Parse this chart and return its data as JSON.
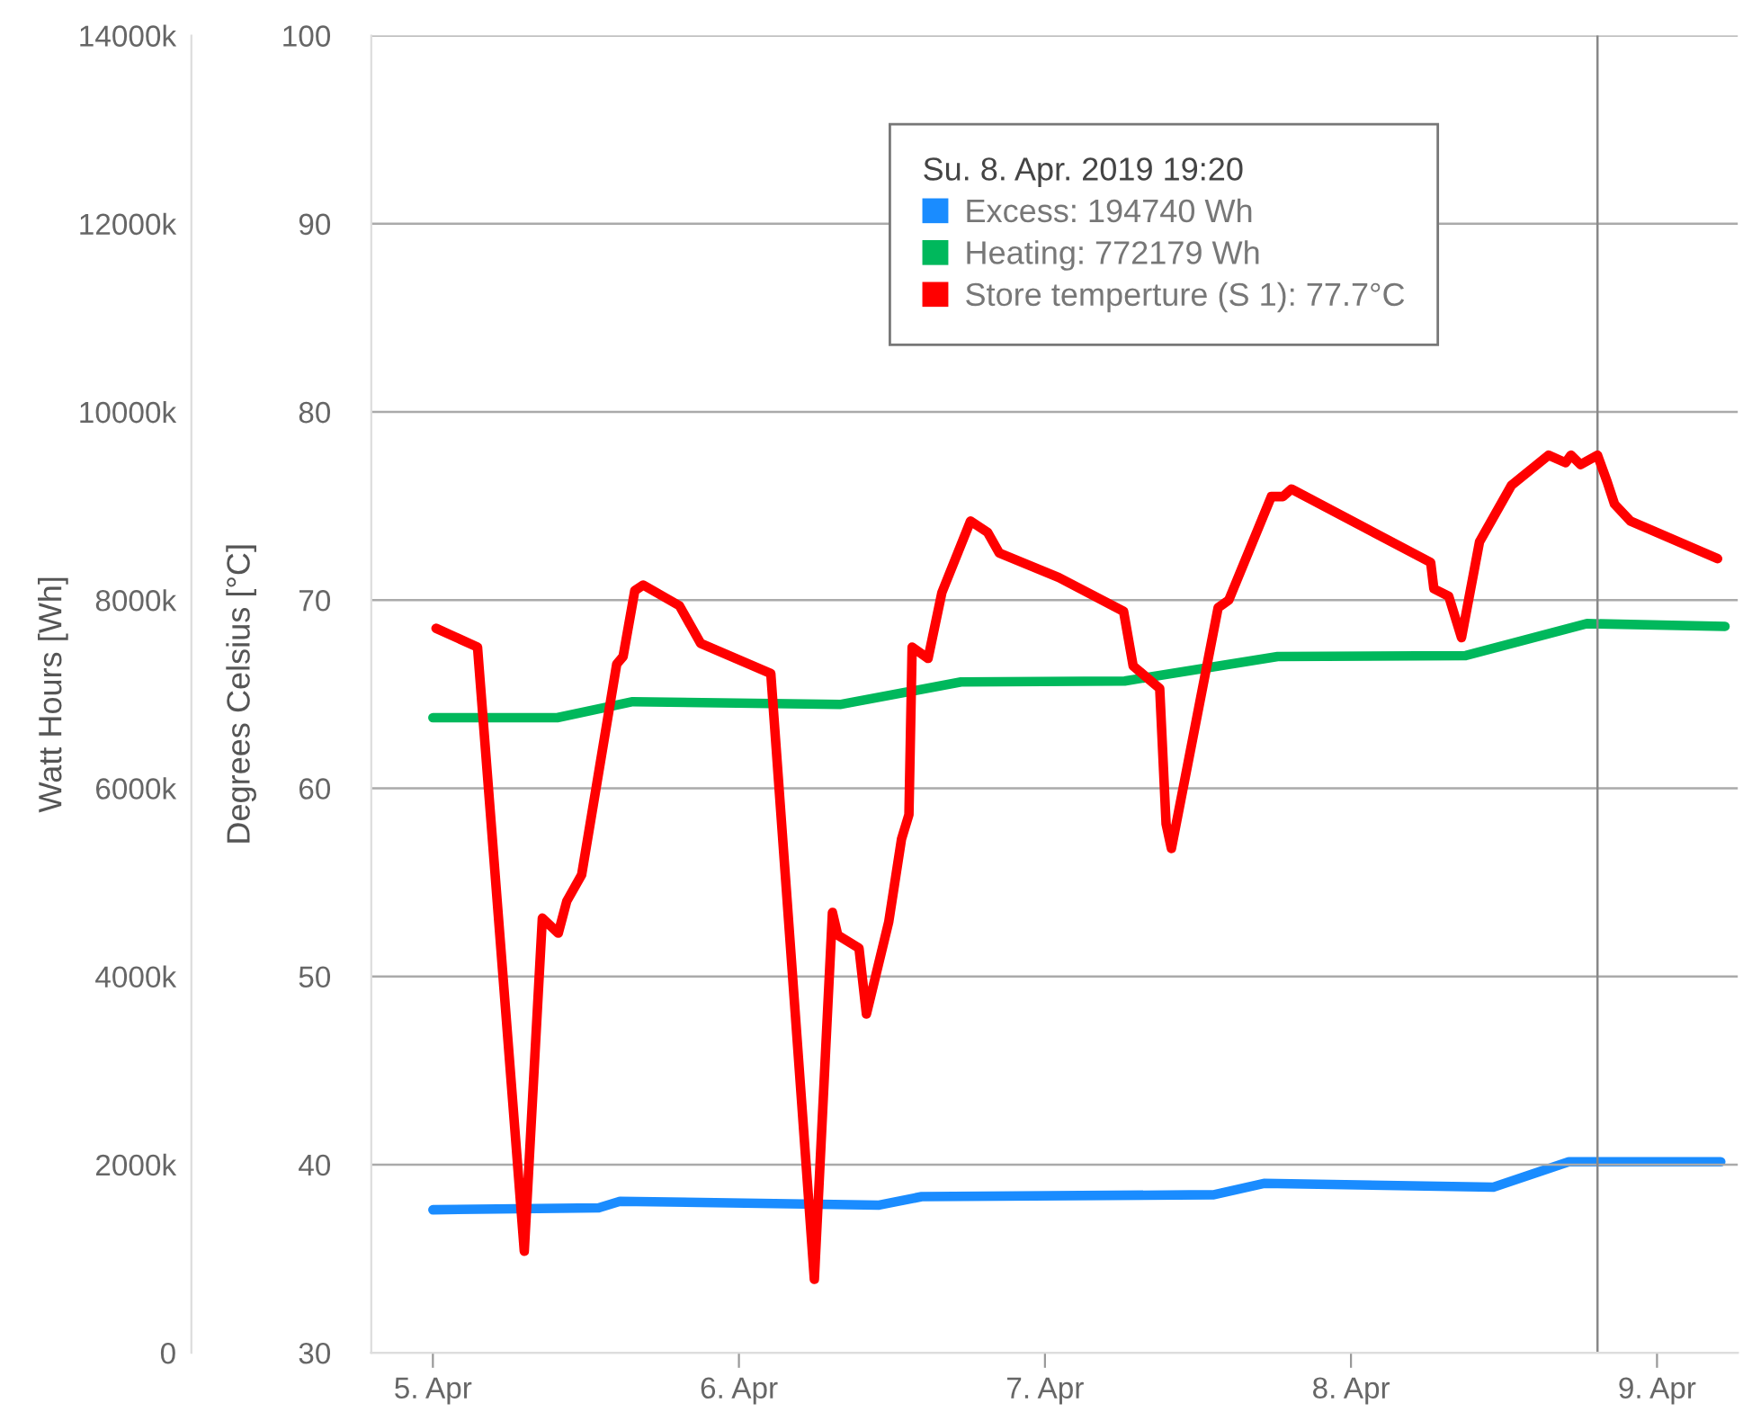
{
  "chart_data": {
    "type": "line",
    "xlabel": null,
    "ylabel": "Degrees Celsius [°C]",
    "y2label": "Watt Hours [Wh]",
    "legend_title": "Su. 8. Apr. 2019 19:20",
    "legend": "top",
    "grid": "y",
    "marker": "none",
    "line_style": "solid",
    "xlim": [
      "2019-04-04T19:10",
      "2019-04-09T06:20"
    ],
    "xticks": [
      {
        "value": "2019-04-05",
        "label": "5. Apr"
      },
      {
        "value": "2019-04-06",
        "label": "6. Apr"
      },
      {
        "value": "2019-04-07",
        "label": "7. Apr"
      },
      {
        "value": "2019-04-08",
        "label": "8. Apr"
      },
      {
        "value": "2019-04-09",
        "label": "9. Apr"
      }
    ],
    "ylim": [
      30,
      100
    ],
    "yticks": [
      30,
      40,
      50,
      60,
      70,
      80,
      90,
      100
    ],
    "y2lim": [
      0,
      14000000
    ],
    "y2ticks": [
      {
        "value": 0,
        "label": "0"
      },
      {
        "value": 2000000,
        "label": "2000k"
      },
      {
        "value": 4000000,
        "label": "4000k"
      },
      {
        "value": 6000000,
        "label": "6000k"
      },
      {
        "value": 8000000,
        "label": "8000k"
      },
      {
        "value": 10000000,
        "label": "10000k"
      },
      {
        "value": 12000000,
        "label": "12000k"
      },
      {
        "value": 14000000,
        "label": "14000k"
      }
    ],
    "ref_lines": [
      {
        "axis": "x",
        "value": "2019-04-08T19:20",
        "label": null,
        "color": "#888888"
      }
    ],
    "series": [
      {
        "name": "Excess: 194740 Wh",
        "color": "#1a8cff",
        "axis": "y2",
        "x": [
          "2019-04-05T00:00",
          "2019-04-05T13:00",
          "2019-04-05T14:40",
          "2019-04-06T11:00",
          "2019-04-06T14:20",
          "2019-04-07T13:15",
          "2019-04-07T17:10",
          "2019-04-08T11:10",
          "2019-04-08T17:05",
          "2019-04-09T05:00"
        ],
        "values": [
          1520000,
          1540000,
          1610000,
          1570000,
          1660000,
          1680000,
          1800000,
          1760000,
          2030000,
          2030000
        ]
      },
      {
        "name": "Heating: 772179 Wh",
        "color": "#00b85c",
        "axis": "y2",
        "x": [
          "2019-04-05T00:00",
          "2019-04-05T09:45",
          "2019-04-05T15:40",
          "2019-04-06T07:55",
          "2019-04-06T17:25",
          "2019-04-07T06:15",
          "2019-04-07T18:15",
          "2019-04-08T09:00",
          "2019-04-08T18:30",
          "2019-04-09T05:20"
        ],
        "values": [
          6750000,
          6750000,
          6920000,
          6890000,
          7130000,
          7140000,
          7400000,
          7410000,
          7750000,
          7720000
        ]
      },
      {
        "name": "Store temperture (S 1): 77.7°C",
        "color": "#ff0000",
        "x": [
          "2019-04-05T00:15",
          "2019-04-05T03:30",
          "2019-04-05T07:10",
          "2019-04-05T08:35",
          "2019-04-05T09:50",
          "2019-04-05T10:30",
          "2019-04-05T11:40",
          "2019-04-05T14:25",
          "2019-04-05T14:55",
          "2019-04-05T15:50",
          "2019-04-05T16:30",
          "2019-04-05T19:20",
          "2019-04-05T21:00",
          "2019-04-06T02:30",
          "2019-04-06T05:55",
          "2019-04-06T07:20",
          "2019-04-06T07:45",
          "2019-04-06T09:25",
          "2019-04-06T10:00",
          "2019-04-06T11:45",
          "2019-04-06T12:45",
          "2019-04-06T13:20",
          "2019-04-06T13:35",
          "2019-04-06T14:50",
          "2019-04-06T15:55",
          "2019-04-06T18:10",
          "2019-04-06T19:30",
          "2019-04-06T20:25",
          "2019-04-07T01:05",
          "2019-04-07T06:10",
          "2019-04-07T06:55",
          "2019-04-07T09:00",
          "2019-04-07T09:30",
          "2019-04-07T09:55",
          "2019-04-07T13:35",
          "2019-04-07T14:25",
          "2019-04-07T17:45",
          "2019-04-07T18:40",
          "2019-04-07T19:20",
          "2019-04-08T06:15",
          "2019-04-08T06:30",
          "2019-04-08T07:40",
          "2019-04-08T08:40",
          "2019-04-08T10:05",
          "2019-04-08T12:35",
          "2019-04-08T15:30",
          "2019-04-08T16:50",
          "2019-04-08T17:15",
          "2019-04-08T18:00",
          "2019-04-08T19:20",
          "2019-04-08T20:05",
          "2019-04-08T20:40",
          "2019-04-08T21:55",
          "2019-04-09T04:45"
        ],
        "values": [
          68.5,
          67.5,
          35.4,
          53.1,
          52.3,
          54.0,
          55.4,
          66.6,
          67.0,
          70.5,
          70.8,
          69.7,
          67.7,
          66.1,
          33.9,
          53.4,
          52.2,
          51.5,
          48.0,
          52.9,
          57.3,
          58.6,
          67.5,
          66.9,
          70.4,
          74.2,
          73.6,
          72.5,
          71.2,
          69.4,
          66.5,
          65.3,
          58.1,
          56.8,
          69.6,
          70.0,
          75.5,
          75.5,
          75.9,
          72.0,
          70.6,
          70.2,
          68.0,
          73.1,
          76.1,
          77.7,
          77.3,
          77.7,
          77.2,
          77.7,
          76.3,
          75.1,
          74.2,
          72.2
        ]
      }
    ]
  }
}
